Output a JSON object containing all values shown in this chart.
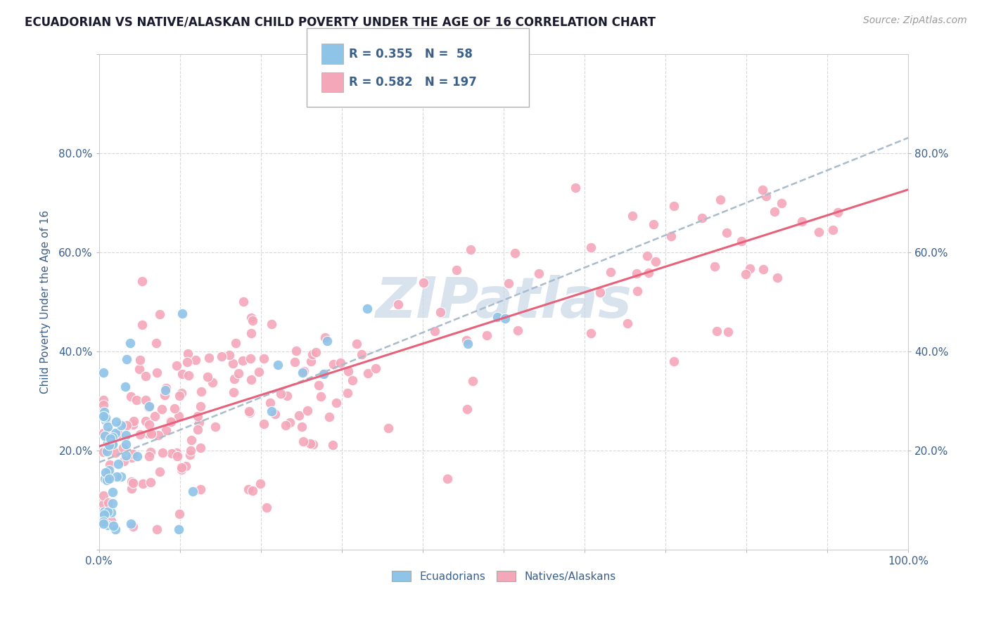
{
  "title": "ECUADORIAN VS NATIVE/ALASKAN CHILD POVERTY UNDER THE AGE OF 16 CORRELATION CHART",
  "source": "Source: ZipAtlas.com",
  "ylabel": "Child Poverty Under the Age of 16",
  "xlim": [
    0.0,
    1.0
  ],
  "ylim": [
    0.0,
    1.0
  ],
  "color_blue": "#8ec4e8",
  "color_pink": "#f4a7b9",
  "color_blue_line": "#7ab0d4",
  "color_pink_line": "#e8607a",
  "color_text": "#3a5f8a",
  "color_grid": "#d8d8d8",
  "watermark_color": "#c8d8e8",
  "blue_n": 58,
  "blue_r": 0.355,
  "pink_n": 197,
  "pink_r": 0.582
}
